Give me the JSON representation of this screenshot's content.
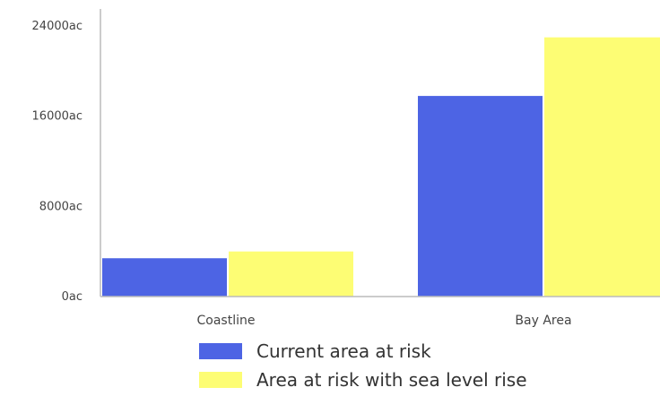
{
  "chart_data": {
    "type": "bar",
    "categories": [
      "Coastline",
      "Bay Area"
    ],
    "series": [
      {
        "name": "Current area at risk",
        "color": "#4d64e4",
        "values": [
          3400,
          17800
        ]
      },
      {
        "name": "Area at risk with sea level rise",
        "color": "#fdfd74",
        "values": [
          4000,
          23000
        ]
      }
    ],
    "yticks": [
      {
        "value": 0,
        "label": "0ac"
      },
      {
        "value": 8000,
        "label": "8000ac"
      },
      {
        "value": 16000,
        "label": "16000ac"
      },
      {
        "value": 24000,
        "label": "24000ac"
      }
    ],
    "ylim": [
      0,
      25200
    ],
    "title": "",
    "xlabel": "",
    "ylabel": "",
    "grid": false,
    "legend_position": "bottom"
  }
}
